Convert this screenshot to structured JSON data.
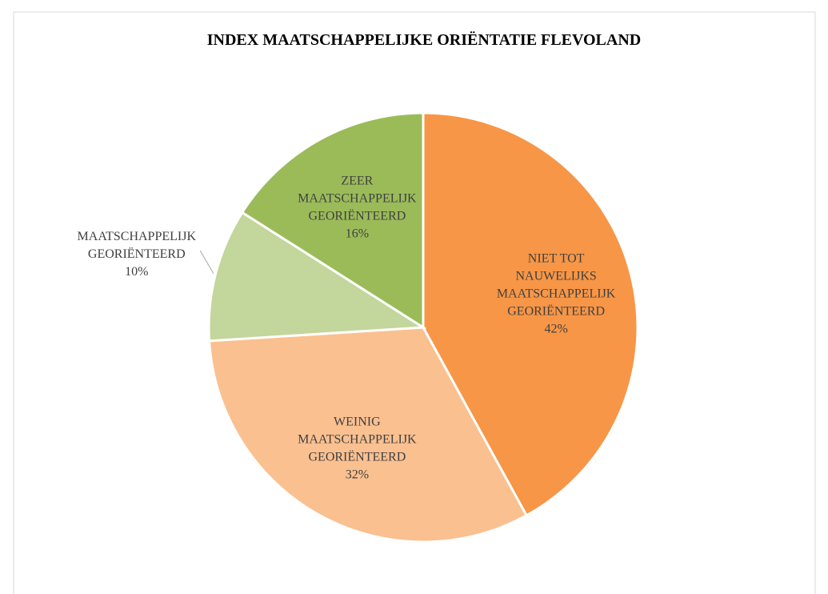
{
  "chart_data": {
    "type": "pie",
    "title": "INDEX MAATSCHAPPELIJKE ORIËNTATIE FLEVOLAND",
    "categories": [
      "NIET TOT\nNAUWELIJKS\nMAATSCHAPPELIJK\nGEORIËNTEERD",
      "WEINIG\nMAATSCHAPPELIJK\nGEORIËNTEERD",
      "MAATSCHAPPELIJK\nGEORIËNTEERD",
      "ZEER\nMAATSCHAPPELIJK\nGEORIËNTEERD"
    ],
    "values": [
      42,
      32,
      10,
      16
    ],
    "value_labels": [
      "42%",
      "32%",
      "10%",
      "16%"
    ],
    "colors": [
      "#f79646",
      "#fac090",
      "#c3d69b",
      "#9bbb59"
    ]
  }
}
